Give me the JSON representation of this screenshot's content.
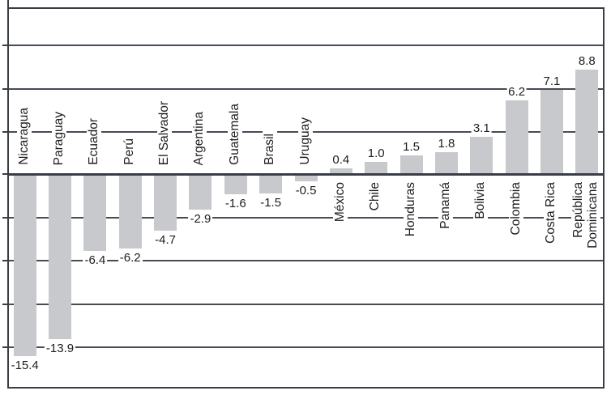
{
  "chart_data": {
    "type": "bar",
    "title": "",
    "xlabel": "",
    "ylabel": "",
    "grid": "on",
    "legend": "none",
    "ylim": [
      -18.5,
      14.2
    ],
    "categories": [
      "Nicaragua",
      "Paraguay",
      "Ecuador",
      "Perú",
      "El Salvador",
      "Argentina",
      "Guatemala",
      "Brasil",
      "Uruguay",
      "México",
      "Chile",
      "Honduras",
      "Panamá",
      "Bolivia",
      "Colombia",
      "Costa Rica",
      "República Dominicana"
    ],
    "values": [
      -15.4,
      -13.9,
      -6.4,
      -6.2,
      -4.7,
      -2.9,
      -1.6,
      -1.5,
      -0.5,
      0.4,
      1.0,
      1.5,
      1.8,
      3.1,
      6.2,
      7.1,
      8.8
    ],
    "data_labels": [
      "-15.4",
      "-13.9",
      "-6.4",
      "-6.2",
      "-4.7",
      "-2.9",
      "-1.6",
      "-1.5",
      "-0.5",
      "0.4",
      "1.0",
      "1.5",
      "1.8",
      "3.1",
      "6.2",
      "7.1",
      "8.8"
    ],
    "multiline_categories": {
      "16": [
        "República",
        "Dominicana"
      ]
    }
  },
  "style": {
    "bar_fill": "#c8c9cc",
    "grid_line_color": "#474b55",
    "axis_line_color": "#393d46",
    "text_color": "#1d1d1f",
    "background": "#ffffff"
  }
}
